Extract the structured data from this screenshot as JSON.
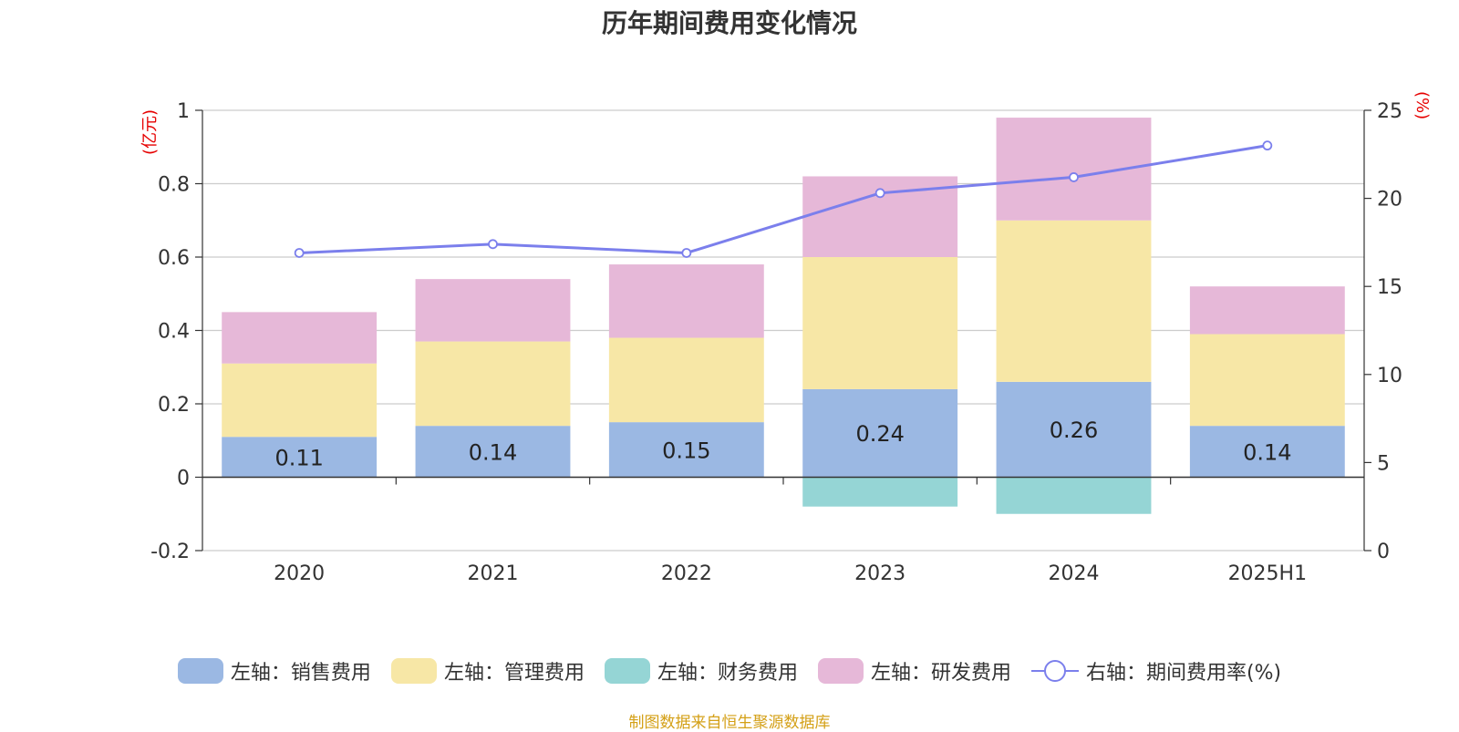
{
  "title": "历年期间费用变化情况",
  "left_unit": "(亿元)",
  "right_unit": "(%)",
  "source": "制图数据来自恒生聚源数据库",
  "colors": {
    "sales": "#9bb8e3",
    "admin": "#f7e7a6",
    "finance": "#95d5d5",
    "rd": "#e6b8d8",
    "rate_line": "#7b7fec"
  },
  "legend": [
    {
      "key": "sales",
      "label": "左轴：销售费用"
    },
    {
      "key": "admin",
      "label": "左轴：管理费用"
    },
    {
      "key": "finance",
      "label": "左轴：财务费用"
    },
    {
      "key": "rd",
      "label": "左轴：研发费用"
    },
    {
      "key": "rate_line",
      "label": "右轴：期间费用率(%)",
      "line": true
    }
  ],
  "chart_data": {
    "type": "bar",
    "stacked": true,
    "categories": [
      "2020",
      "2021",
      "2022",
      "2023",
      "2024",
      "2025H1"
    ],
    "series": [
      {
        "name": "左轴：销售费用",
        "key": "sales",
        "axis": "left",
        "values": [
          0.11,
          0.14,
          0.15,
          0.24,
          0.26,
          0.14
        ],
        "labels": [
          "0.11",
          "0.14",
          "0.15",
          "0.24",
          "0.26",
          "0.14"
        ]
      },
      {
        "name": "左轴：管理费用",
        "key": "admin",
        "axis": "left",
        "values": [
          0.2,
          0.23,
          0.23,
          0.36,
          0.44,
          0.25
        ]
      },
      {
        "name": "左轴：财务费用",
        "key": "finance",
        "axis": "left",
        "values": [
          0,
          0,
          0,
          -0.08,
          -0.1,
          0
        ]
      },
      {
        "name": "左轴：研发费用",
        "key": "rd",
        "axis": "left",
        "values": [
          0.14,
          0.17,
          0.2,
          0.22,
          0.28,
          0.13
        ]
      },
      {
        "name": "右轴：期间费用率(%)",
        "key": "rate_line",
        "type": "line",
        "axis": "right",
        "values": [
          16.9,
          17.4,
          16.9,
          20.3,
          21.2,
          23.0
        ]
      }
    ],
    "left_axis": {
      "min": -0.2,
      "max": 1,
      "ticks": [
        "-0.2",
        "0",
        "0.2",
        "0.4",
        "0.6",
        "0.8",
        "1"
      ],
      "tick_values": [
        -0.2,
        0,
        0.2,
        0.4,
        0.6,
        0.8,
        1
      ]
    },
    "right_axis": {
      "min": 0,
      "max": 25,
      "ticks": [
        "0",
        "5",
        "10",
        "15",
        "20",
        "25"
      ],
      "tick_values": [
        0,
        5,
        10,
        15,
        20,
        25
      ]
    },
    "grid": true,
    "legend_position": "bottom"
  }
}
